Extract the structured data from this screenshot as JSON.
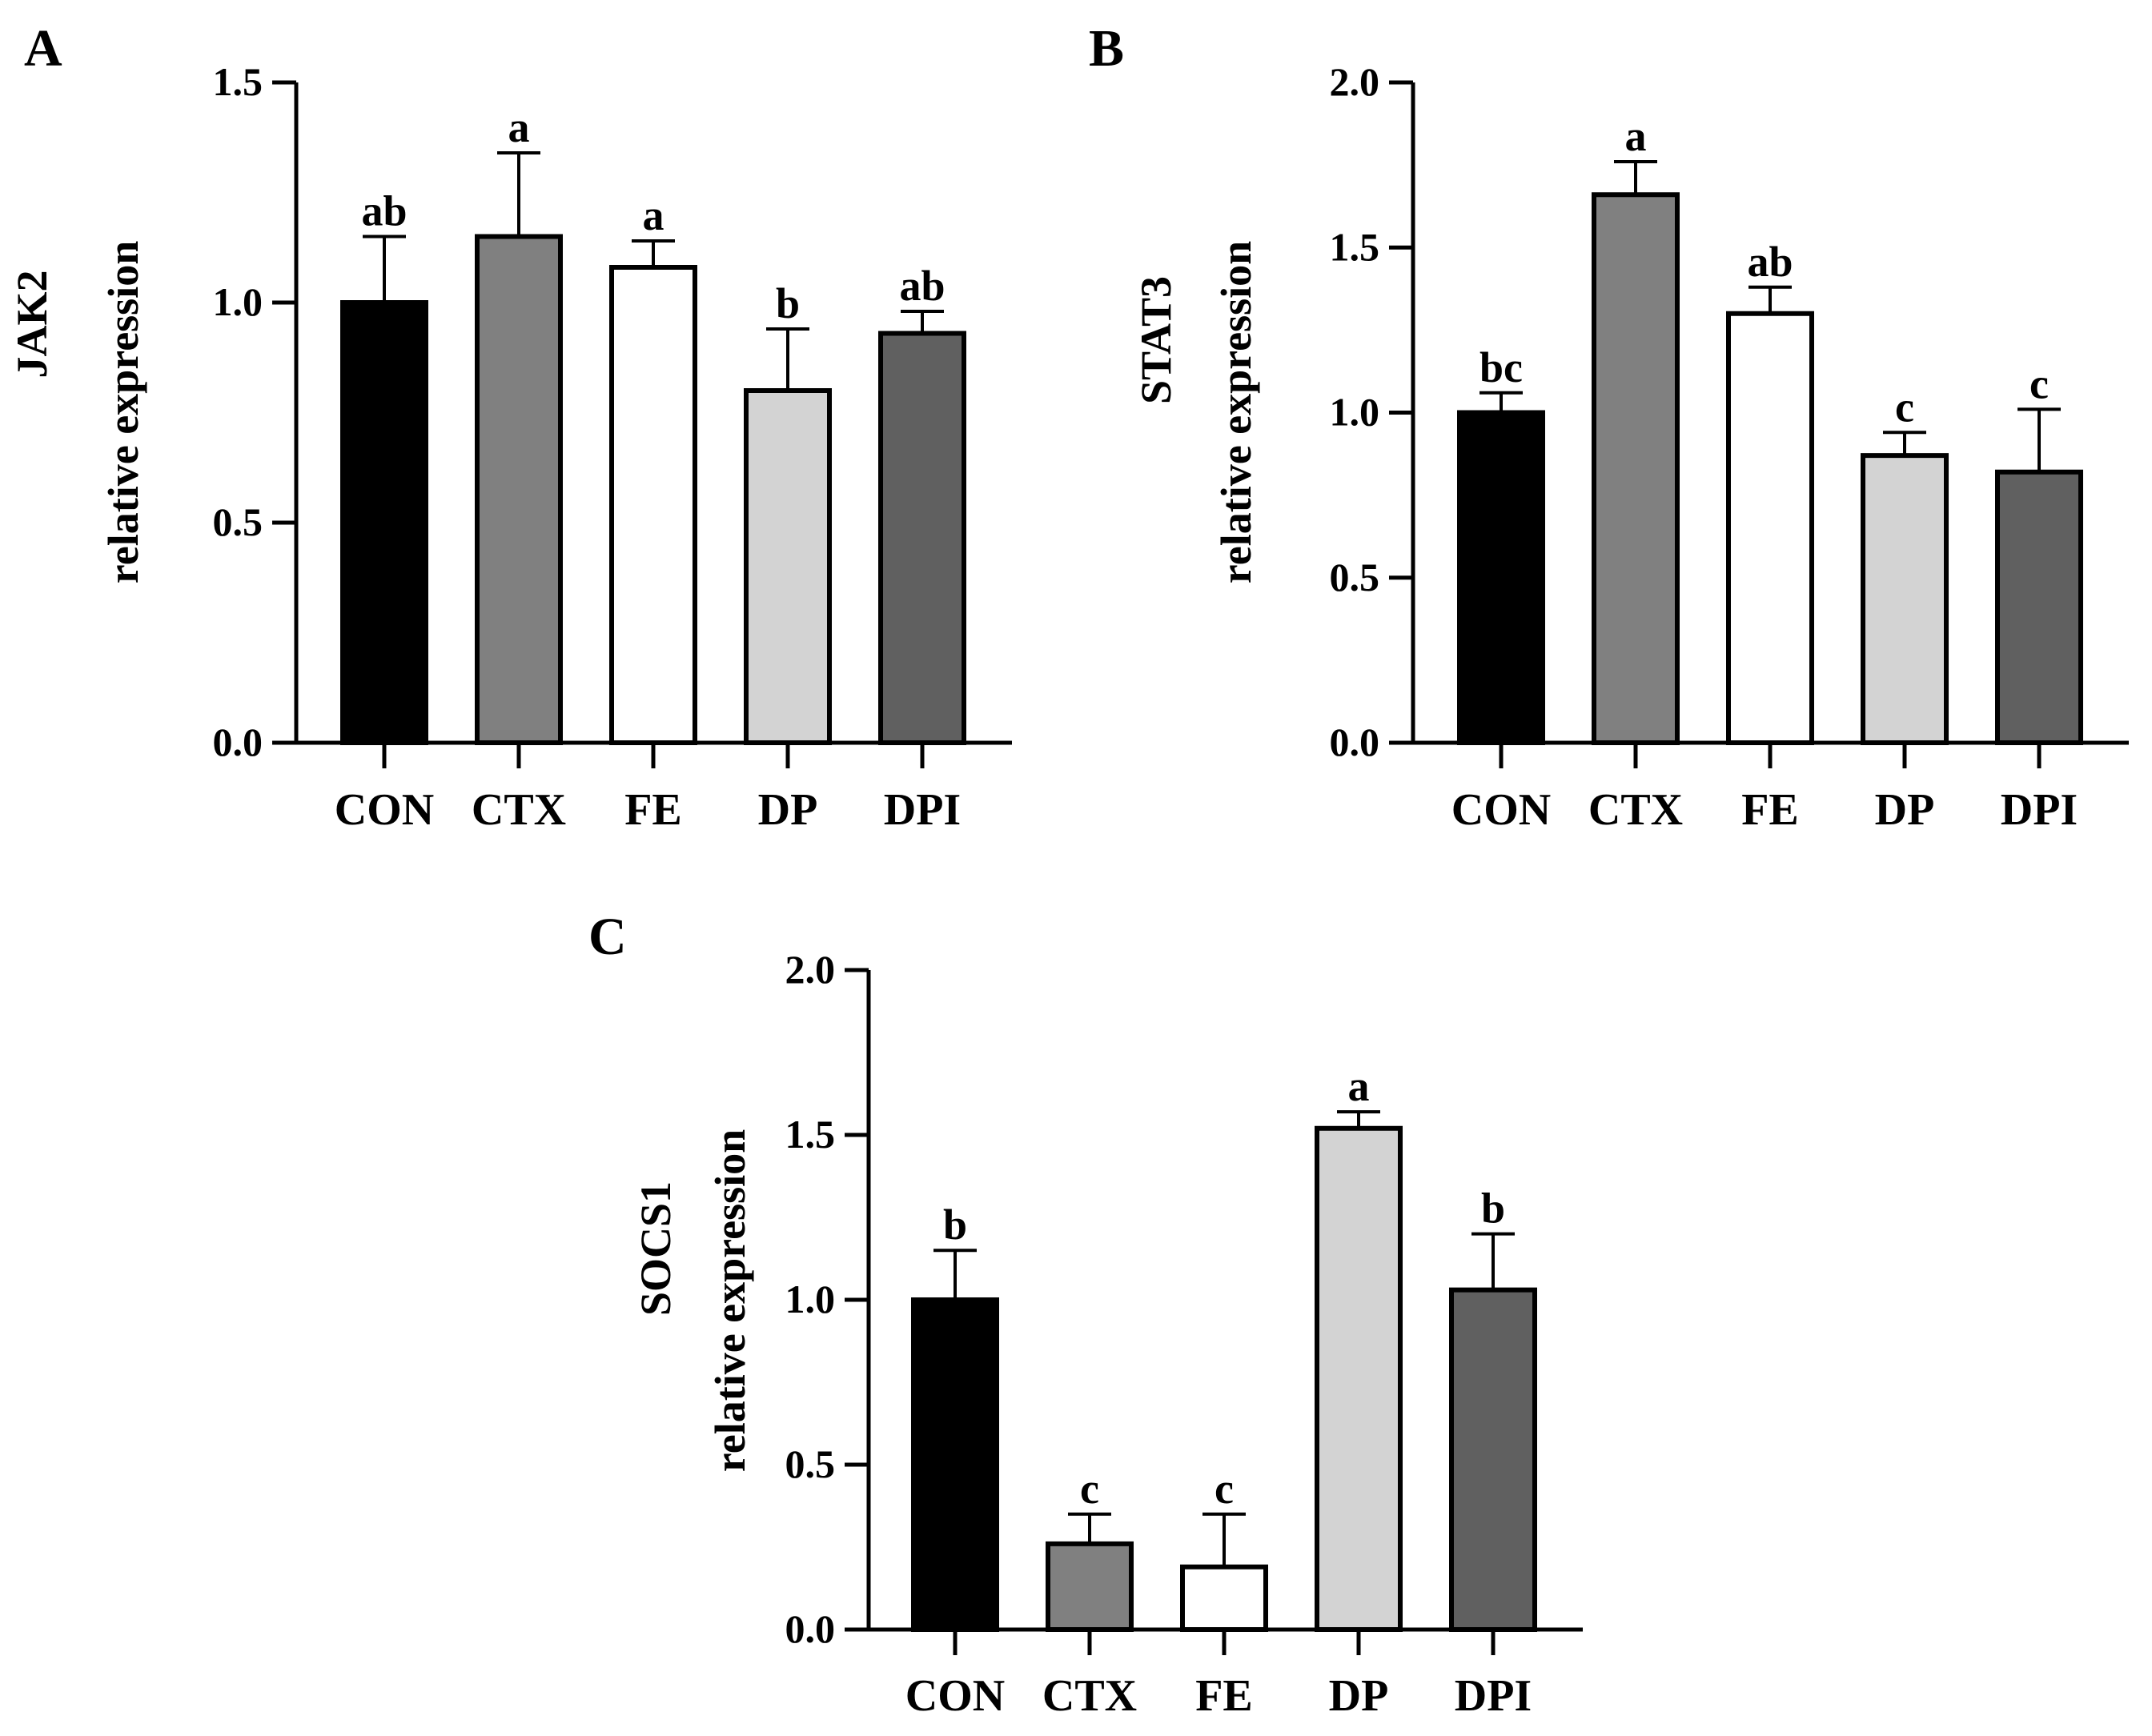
{
  "chart_data": [
    {
      "panel": "A",
      "type": "bar",
      "gene": "JAK2",
      "ylabel": "relative expression",
      "categories": [
        "CON",
        "CTX",
        "FE",
        "DP",
        "DPI"
      ],
      "values": [
        1.0,
        1.15,
        1.08,
        0.8,
        0.93
      ],
      "errors": [
        0.15,
        0.19,
        0.06,
        0.14,
        0.05
      ],
      "significance": [
        "ab",
        "a",
        "a",
        "b",
        "ab"
      ],
      "colors": [
        "#000000",
        "#808080",
        "#ffffff",
        "#d3d3d3",
        "#606060"
      ],
      "ylim": [
        0,
        1.5
      ],
      "yticks": [
        "0.0",
        "0.5",
        "1.0",
        "1.5"
      ]
    },
    {
      "panel": "B",
      "type": "bar",
      "gene": "STAT3",
      "ylabel": "relative expression",
      "categories": [
        "CON",
        "CTX",
        "FE",
        "DP",
        "DPI"
      ],
      "values": [
        1.0,
        1.66,
        1.3,
        0.87,
        0.82
      ],
      "errors": [
        0.06,
        0.1,
        0.08,
        0.07,
        0.19
      ],
      "significance": [
        "bc",
        "a",
        "ab",
        "c",
        "c"
      ],
      "colors": [
        "#000000",
        "#808080",
        "#ffffff",
        "#d3d3d3",
        "#606060"
      ],
      "ylim": [
        0,
        2.0
      ],
      "yticks": [
        "0.0",
        "0.5",
        "1.0",
        "1.5",
        "2.0"
      ]
    },
    {
      "panel": "C",
      "type": "bar",
      "gene": "SOCS1",
      "ylabel": "relative expression",
      "categories": [
        "CON",
        "CTX",
        "FE",
        "DP",
        "DPI"
      ],
      "values": [
        1.0,
        0.26,
        0.19,
        1.52,
        1.03
      ],
      "errors": [
        0.15,
        0.09,
        0.16,
        0.05,
        0.17
      ],
      "significance": [
        "b",
        "c",
        "c",
        "a",
        "b"
      ],
      "colors": [
        "#000000",
        "#808080",
        "#ffffff",
        "#d3d3d3",
        "#606060"
      ],
      "ylim": [
        0,
        2.0
      ],
      "yticks": [
        "0.0",
        "0.5",
        "1.0",
        "1.5",
        "2.0"
      ]
    }
  ]
}
